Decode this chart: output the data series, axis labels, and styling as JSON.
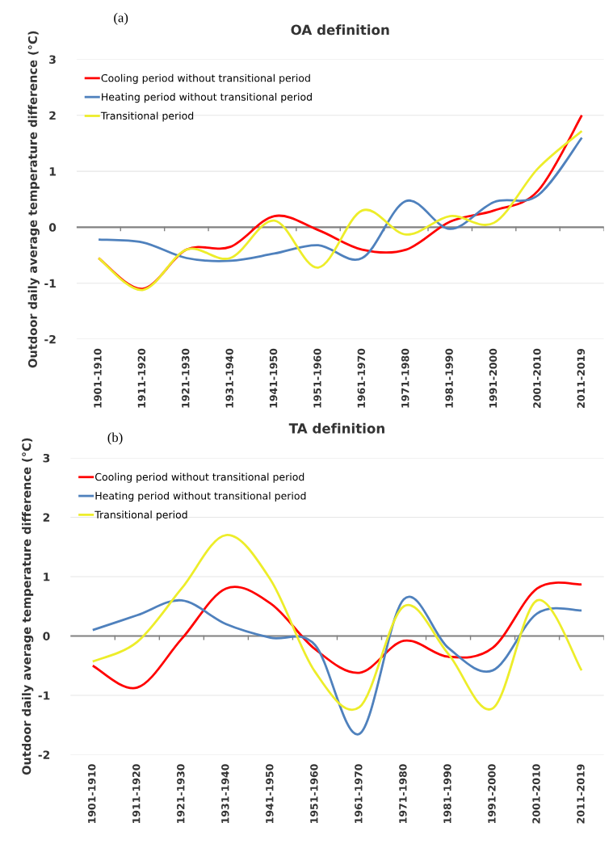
{
  "chart_data": [
    {
      "type": "line",
      "title": "OA definition",
      "ylabel": "Outdoor daily average temperature difference (°C)",
      "annotations": [
        "(a)"
      ],
      "categories": [
        "1901-1910",
        "1911-1920",
        "1921-1930",
        "1931-1940",
        "1941-1950",
        "1951-1960",
        "1961-1970",
        "1971-1980",
        "1981-1990",
        "1991-2000",
        "2001-2010",
        "2011-2019"
      ],
      "series": [
        {
          "name": "Cooling period without transitional period",
          "color": "#ff0000",
          "values": [
            -0.55,
            -1.1,
            -0.4,
            -0.35,
            0.2,
            -0.05,
            -0.4,
            -0.4,
            0.1,
            0.3,
            0.65,
            2.0
          ]
        },
        {
          "name": "Heating period without transitional period",
          "color": "#4f81bd",
          "values": [
            -0.22,
            -0.27,
            -0.55,
            -0.6,
            -0.47,
            -0.32,
            -0.55,
            0.47,
            -0.03,
            0.45,
            0.57,
            1.6
          ]
        },
        {
          "name": "Transitional period",
          "color": "#eded2a",
          "values": [
            -0.55,
            -1.12,
            -0.4,
            -0.55,
            0.12,
            -0.72,
            0.3,
            -0.13,
            0.2,
            0.08,
            1.05,
            1.72
          ]
        }
      ],
      "ylim": [
        -2,
        3
      ],
      "yticks": [
        -2,
        -1,
        0,
        1,
        2,
        3
      ],
      "grid": "y",
      "legend": "top left",
      "marker": "none",
      "line_style": "solid"
    },
    {
      "type": "line",
      "title": "TA definition",
      "ylabel": "Outdoor daily average temperature difference (°C)",
      "annotations": [
        "(b)"
      ],
      "categories": [
        "1901-1910",
        "1911-1920",
        "1921-1930",
        "1931-1940",
        "1941-1950",
        "1951-1960",
        "1961-1970",
        "1971-1980",
        "1981-1990",
        "1991-2000",
        "2001-2010",
        "2011-2019"
      ],
      "series": [
        {
          "name": "Cooling period without transitional period",
          "color": "#ff0000",
          "values": [
            -0.5,
            -0.87,
            -0.05,
            0.8,
            0.55,
            -0.22,
            -0.62,
            -0.08,
            -0.35,
            -0.2,
            0.8,
            0.87
          ]
        },
        {
          "name": "Heating period without transitional period",
          "color": "#4f81bd",
          "values": [
            0.1,
            0.35,
            0.6,
            0.2,
            -0.03,
            -0.15,
            -1.65,
            0.62,
            -0.2,
            -0.58,
            0.38,
            0.43
          ]
        },
        {
          "name": "Transitional period",
          "color": "#eded2a",
          "values": [
            -0.43,
            -0.1,
            0.8,
            1.7,
            0.95,
            -0.6,
            -1.2,
            0.5,
            -0.3,
            -1.22,
            0.6,
            -0.58
          ]
        }
      ],
      "ylim": [
        -2,
        3
      ],
      "yticks": [
        -2,
        -1,
        0,
        1,
        2,
        3
      ],
      "grid": "y",
      "legend": "top left",
      "marker": "none",
      "line_style": "solid"
    }
  ]
}
